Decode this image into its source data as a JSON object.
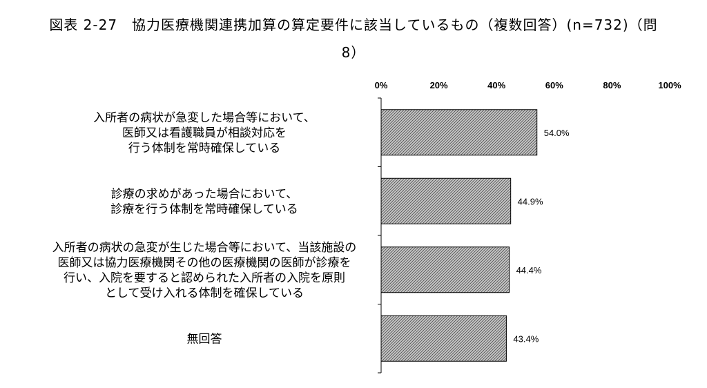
{
  "chart_data": {
    "type": "bar",
    "orientation": "horizontal",
    "title_line1": "図表 2-27　協力医療機関連携加算の算定要件に該当しているもの（複数回答）(n=732)（問",
    "title_line2": "8）",
    "xlim": [
      0,
      100
    ],
    "ticks": [
      "0%",
      "20%",
      "40%",
      "60%",
      "80%",
      "100%"
    ],
    "tick_values": [
      0,
      20,
      40,
      60,
      80,
      100
    ],
    "grid": false,
    "categories": [
      [
        "入所者の病状が急変した場合等において、",
        "医師又は看護職員が相談対応を",
        "行う体制を常時確保している"
      ],
      [
        "診療の求めがあった場合において、",
        "診療を行う体制を常時確保している"
      ],
      [
        "入所者の病状の急変が生じた場合等において、当該施設の",
        "医師又は協力医療機関その他の医療機関の医師が診療を",
        "行い、入院を要すると認められた入所者の入院を原則",
        "として受け入れる体制を確保している"
      ],
      [
        "無回答"
      ]
    ],
    "values": [
      54.0,
      44.9,
      44.4,
      43.4
    ],
    "value_labels": [
      "54.0%",
      "44.9%",
      "44.4%",
      "43.4%"
    ],
    "bar_fill": "hatched gray"
  }
}
